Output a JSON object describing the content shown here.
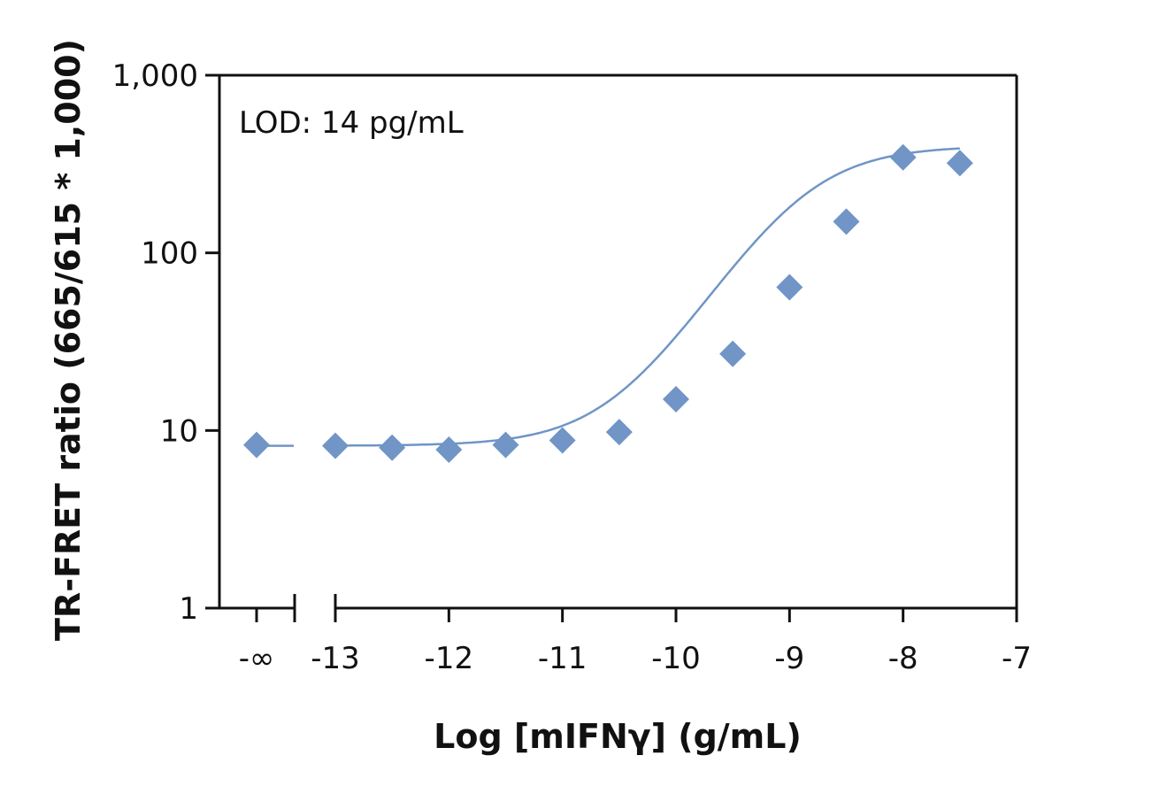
{
  "chart_data": {
    "type": "scatter",
    "title": "",
    "annotation": "LOD: 14 pg/mL",
    "xlabel": "Log [mIFNγ] (g/mL)",
    "ylabel": "TR-FRET ratio (665/615 * 1,000)",
    "y_scale": "log",
    "ylim": [
      1,
      1000
    ],
    "xlim": [
      -13.75,
      -7
    ],
    "grid": false,
    "x_break_between": [
      "-∞",
      -13
    ],
    "x_tick_labels": [
      "-∞",
      "-13",
      "-12",
      "-11",
      "-10",
      "-9",
      "-8",
      "-7"
    ],
    "y_tick_labels": [
      "1",
      "10",
      "100",
      "1,000"
    ],
    "series": [
      {
        "marker": "diamond",
        "color": "#7095c6",
        "points": [
          {
            "x": "-∞",
            "y": 8.3
          },
          {
            "x": -13,
            "y": 8.2
          },
          {
            "x": -12.5,
            "y": 8.0
          },
          {
            "x": -12,
            "y": 7.8
          },
          {
            "x": -11.5,
            "y": 8.3
          },
          {
            "x": -11,
            "y": 8.8
          },
          {
            "x": -10.5,
            "y": 9.8
          },
          {
            "x": -10,
            "y": 15
          },
          {
            "x": -9.5,
            "y": 27
          },
          {
            "x": -9,
            "y": 64
          },
          {
            "x": -8.5,
            "y": 150
          },
          {
            "x": -8,
            "y": 345
          },
          {
            "x": -7.5,
            "y": 320
          }
        ]
      }
    ],
    "fit_curve": {
      "color": "#7095c6",
      "model": "4PL",
      "bottom": 8.2,
      "top": 400,
      "log_ec50": -8.9,
      "hill": 1.05
    }
  }
}
